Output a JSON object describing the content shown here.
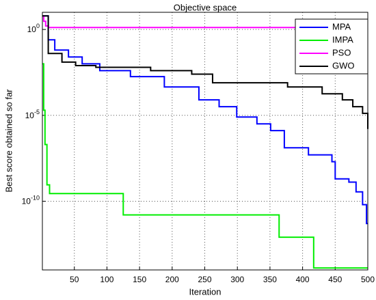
{
  "chart_data": {
    "type": "line",
    "title": "Objective space",
    "xlabel": "Iteration",
    "ylabel": "Best score obtained so far",
    "yscale": "log",
    "grid": true,
    "legend": "upper right",
    "xlim": [
      1,
      500
    ],
    "xticks": [
      50,
      100,
      150,
      200,
      250,
      300,
      350,
      400,
      450,
      500
    ],
    "ylim": [
      1e-14,
      10
    ],
    "yticks": [
      {
        "value": 1e-10,
        "label": "10^-10"
      },
      {
        "value": 1e-05,
        "label": "10^-5"
      },
      {
        "value": 1,
        "label": "10^0"
      }
    ],
    "series": [
      {
        "name": "MPA",
        "color": "#0000ff",
        "x": [
          1,
          10,
          20,
          41,
          62,
          89,
          136,
          188,
          241,
          272,
          299,
          330,
          351,
          372,
          409,
          445,
          450,
          471,
          482,
          492,
          498,
          500
        ],
        "values": [
          6.2,
          0.25,
          0.063,
          0.025,
          0.01,
          0.004,
          0.0018,
          0.00045,
          8e-05,
          3.2e-05,
          8e-06,
          3.2e-06,
          1.3e-06,
          1.3e-07,
          5e-08,
          2e-08,
          2e-09,
          1.3e-09,
          3.5e-10,
          6.3e-11,
          5e-12,
          5e-12
        ]
      },
      {
        "name": "IMPA",
        "color": "#00ee00",
        "x": [
          1,
          3,
          5,
          8,
          12,
          125,
          364,
          417,
          500
        ],
        "values": [
          0.01,
          2e-05,
          2e-07,
          9e-10,
          2.8e-10,
          1.6e-11,
          8e-13,
          1.3e-14,
          1.3e-14
        ]
      },
      {
        "name": "PSO",
        "color": "#ff00ff",
        "x": [
          1,
          3,
          6,
          10,
          500
        ],
        "values": [
          6.2,
          3,
          1.6,
          1.3,
          1.3
        ]
      },
      {
        "name": "GWO",
        "color": "#000000",
        "x": [
          1,
          10,
          31,
          52,
          83,
          167,
          230,
          262,
          377,
          430,
          461,
          477,
          492,
          500
        ],
        "values": [
          6.2,
          0.04,
          0.0126,
          0.0079,
          0.0063,
          0.004,
          0.0025,
          0.00079,
          0.00045,
          0.00018,
          8e-05,
          3.2e-05,
          1.3e-05,
          1.6e-06
        ]
      }
    ]
  }
}
